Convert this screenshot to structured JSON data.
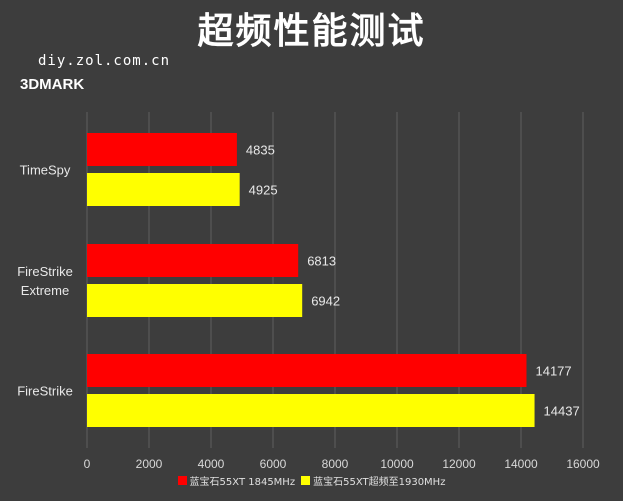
{
  "title": "超频性能测试",
  "watermark": "diy.zol.com.cn",
  "subtitle": "3DMARK",
  "chart_data": {
    "type": "bar",
    "orientation": "horizontal",
    "categories": [
      "TimeSpy",
      "FireStrike Extreme",
      "FireStrike"
    ],
    "category_lines": [
      [
        "TimeSpy"
      ],
      [
        "FireStrike",
        "Extreme"
      ],
      [
        "FireStrike"
      ]
    ],
    "series": [
      {
        "name": "蓝宝石55XT 1845MHz",
        "color": "#ff0000",
        "values": [
          4835,
          6813,
          14177
        ]
      },
      {
        "name": "蓝宝石55XT超频至1930MHz",
        "color": "#ffff00",
        "values": [
          4925,
          6942,
          14437
        ]
      }
    ],
    "xlim": [
      0,
      16000
    ],
    "xticks": [
      0,
      2000,
      4000,
      6000,
      8000,
      10000,
      12000,
      14000,
      16000
    ],
    "grid": true,
    "legend_position": "bottom"
  }
}
